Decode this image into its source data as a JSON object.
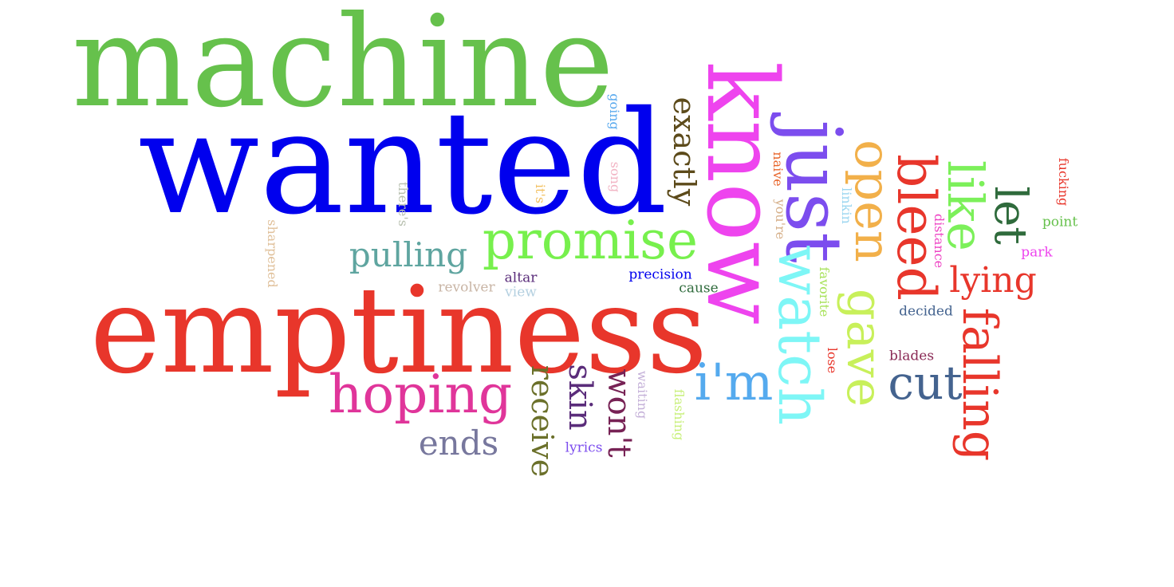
{
  "words": [
    {
      "text": "machine",
      "color": "#66c14c",
      "orientation": "horizontal"
    },
    {
      "text": "wanted",
      "color": "#0000ee",
      "orientation": "horizontal"
    },
    {
      "text": "emptiness",
      "color": "#e8362b",
      "orientation": "horizontal"
    },
    {
      "text": "know",
      "color": "#ee44ee",
      "orientation": "vertical"
    },
    {
      "text": "just",
      "color": "#7c4dee",
      "orientation": "vertical"
    },
    {
      "text": "watch",
      "color": "#7ef6f6",
      "orientation": "vertical"
    },
    {
      "text": "open",
      "color": "#f2b04a",
      "orientation": "vertical"
    },
    {
      "text": "gave",
      "color": "#c8f05a",
      "orientation": "vertical"
    },
    {
      "text": "bleed",
      "color": "#e8362b",
      "orientation": "vertical"
    },
    {
      "text": "like",
      "color": "#7cf05a",
      "orientation": "vertical"
    },
    {
      "text": "let",
      "color": "#2f6b3c",
      "orientation": "vertical"
    },
    {
      "text": "falling",
      "color": "#e8362b",
      "orientation": "vertical"
    },
    {
      "text": "lying",
      "color": "#e8362b",
      "orientation": "horizontal"
    },
    {
      "text": "cut",
      "color": "#44638f",
      "orientation": "horizontal"
    },
    {
      "text": "i'm",
      "color": "#55aaee",
      "orientation": "horizontal"
    },
    {
      "text": "promise",
      "color": "#77f04d",
      "orientation": "horizontal"
    },
    {
      "text": "pulling",
      "color": "#5fa5a0",
      "orientation": "horizontal"
    },
    {
      "text": "hoping",
      "color": "#e0359a",
      "orientation": "horizontal"
    },
    {
      "text": "ends",
      "color": "#77779d",
      "orientation": "horizontal"
    },
    {
      "text": "receive",
      "color": "#6b702a",
      "orientation": "vertical"
    },
    {
      "text": "skin",
      "color": "#5a2c7a",
      "orientation": "vertical"
    },
    {
      "text": "won't",
      "color": "#772255",
      "orientation": "vertical"
    },
    {
      "text": "exactly",
      "color": "#5c4a1a",
      "orientation": "vertical"
    },
    {
      "text": "going",
      "color": "#5aaaee",
      "orientation": "vertical"
    },
    {
      "text": "song",
      "color": "#f2b4c4",
      "orientation": "vertical"
    },
    {
      "text": "it's",
      "color": "#f2c060",
      "orientation": "vertical"
    },
    {
      "text": "there's",
      "color": "#b8c0b0",
      "orientation": "vertical"
    },
    {
      "text": "sharpened",
      "color": "#e0c09a",
      "orientation": "vertical"
    },
    {
      "text": "naive",
      "color": "#e8652b",
      "orientation": "vertical"
    },
    {
      "text": "you're",
      "color": "#d6b08a",
      "orientation": "vertical"
    },
    {
      "text": "linkin",
      "color": "#9ad6f0",
      "orientation": "vertical"
    },
    {
      "text": "favorite",
      "color": "#a8e25a",
      "orientation": "vertical"
    },
    {
      "text": "lose",
      "color": "#e8362b",
      "orientation": "vertical"
    },
    {
      "text": "distance",
      "color": "#ee44c4",
      "orientation": "vertical"
    },
    {
      "text": "fucking",
      "color": "#e8362b",
      "orientation": "vertical"
    },
    {
      "text": "waiting",
      "color": "#c4b0d8",
      "orientation": "vertical"
    },
    {
      "text": "flashing",
      "color": "#c8f07a",
      "orientation": "vertical"
    },
    {
      "text": "altar",
      "color": "#5a2c7a",
      "orientation": "horizontal"
    },
    {
      "text": "revolver",
      "color": "#c8b4a4",
      "orientation": "horizontal"
    },
    {
      "text": "view",
      "color": "#b4d0e0",
      "orientation": "horizontal"
    },
    {
      "text": "precision",
      "color": "#0000ee",
      "orientation": "horizontal"
    },
    {
      "text": "cause",
      "color": "#2f6b3c",
      "orientation": "horizontal"
    },
    {
      "text": "decided",
      "color": "#44638f",
      "orientation": "horizontal"
    },
    {
      "text": "blades",
      "color": "#8a2a55",
      "orientation": "horizontal"
    },
    {
      "text": "point",
      "color": "#66c14c",
      "orientation": "horizontal"
    },
    {
      "text": "park",
      "color": "#ee44ee",
      "orientation": "horizontal"
    },
    {
      "text": "lyrics",
      "color": "#7c4dee",
      "orientation": "horizontal"
    }
  ]
}
